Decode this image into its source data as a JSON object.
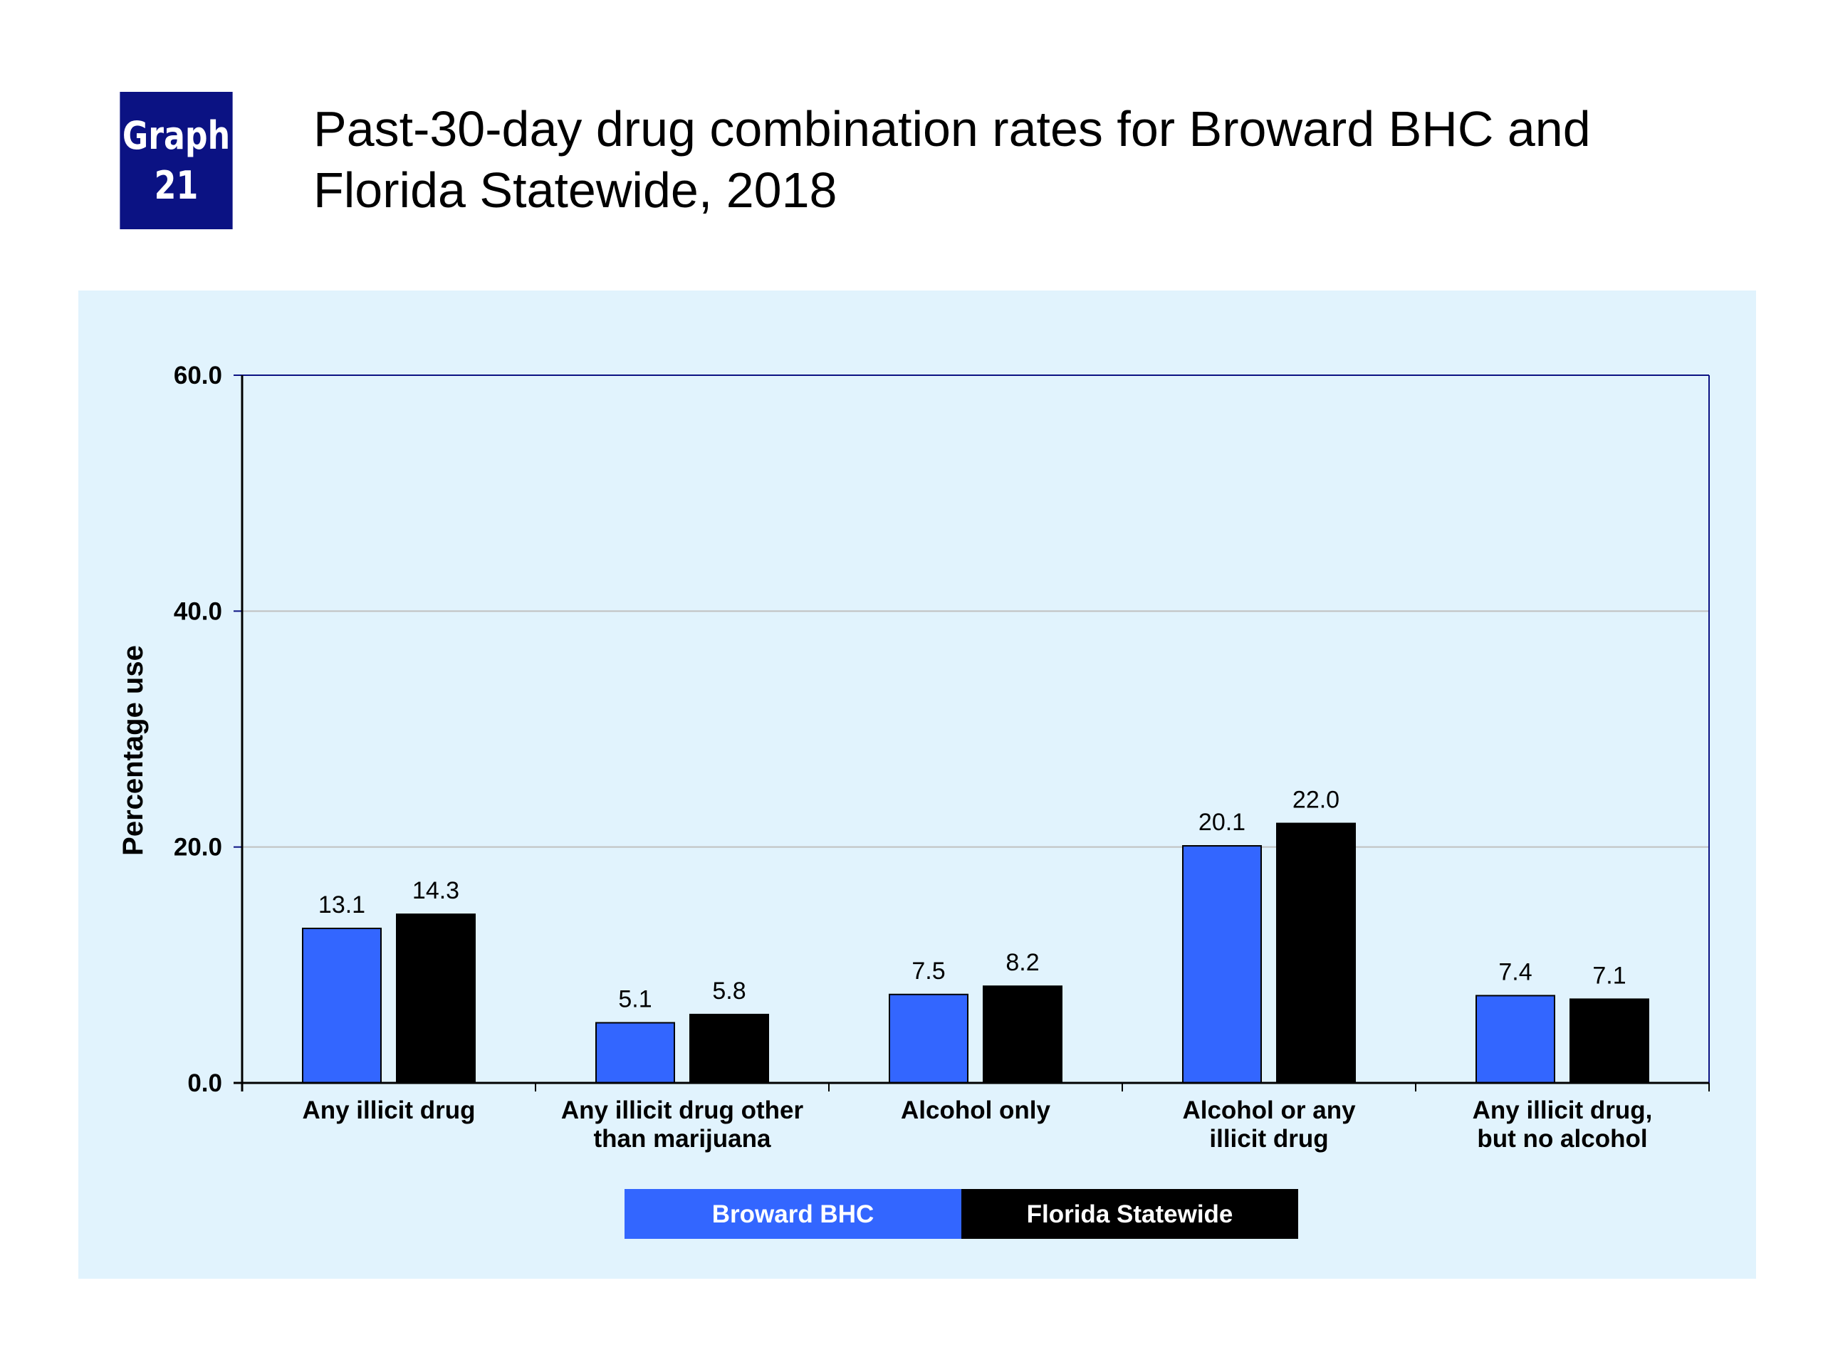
{
  "badge": {
    "line1": "Graph",
    "line2": "21"
  },
  "title": {
    "line1": "Past-30-day drug combination rates for Broward BHC and",
    "line2": "Florida Statewide, 2018"
  },
  "colors": {
    "badge": "#0b1283",
    "panel": "#e1f3fd",
    "broward": "#3366ff",
    "florida": "#000000",
    "axis": "#0b1283"
  },
  "chart_data": {
    "type": "bar",
    "ylabel": "Percentage use",
    "ylim": [
      0,
      60
    ],
    "yticks": [
      "0.0",
      "20.0",
      "40.0",
      "60.0"
    ],
    "grid": true,
    "legend_position": "bottom",
    "categories": [
      [
        "Any illicit drug"
      ],
      [
        "Any illicit drug other",
        "than marijuana"
      ],
      [
        "Alcohol only"
      ],
      [
        "Alcohol or any",
        "illicit drug"
      ],
      [
        "Any illicit drug,",
        "but no alcohol"
      ]
    ],
    "series": [
      {
        "name": "Broward BHC",
        "color": "#3366ff",
        "values": [
          13.1,
          5.1,
          7.5,
          20.1,
          7.4
        ],
        "labels": [
          "13.1",
          "5.1",
          "7.5",
          "20.1",
          "7.4"
        ]
      },
      {
        "name": "Florida Statewide",
        "color": "#000000",
        "values": [
          14.3,
          5.8,
          8.2,
          22.0,
          7.1
        ],
        "labels": [
          "14.3",
          "5.8",
          "8.2",
          "22.0",
          "7.1"
        ]
      }
    ]
  }
}
